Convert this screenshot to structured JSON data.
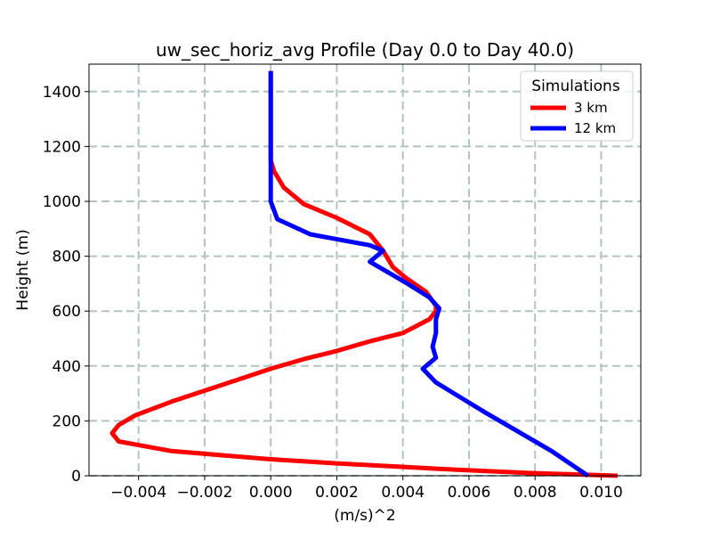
{
  "chart_data": {
    "type": "line",
    "title": "uw_sec_horiz_avg Profile (Day 0.0 to Day 40.0)",
    "xlabel": "(m/s)^2",
    "ylabel": "Height (m)",
    "xlim": [
      -0.0055,
      0.0112
    ],
    "ylim": [
      0,
      1500
    ],
    "x_ticks": [
      -0.004,
      -0.002,
      0.0,
      0.002,
      0.004,
      0.006,
      0.008,
      0.01
    ],
    "x_tick_labels": [
      "−0.004",
      "−0.002",
      "0.000",
      "0.002",
      "0.004",
      "0.006",
      "0.008",
      "0.010"
    ],
    "y_ticks": [
      0,
      200,
      400,
      600,
      800,
      1000,
      1200,
      1400
    ],
    "y_tick_labels": [
      "0",
      "200",
      "400",
      "600",
      "800",
      "1000",
      "1200",
      "1400"
    ],
    "grid": true,
    "legend": {
      "title": "Simulations",
      "placement": "upper right"
    },
    "series": [
      {
        "name": "3 km",
        "color": "#ff0000",
        "points": [
          [
            0.0105,
            0
          ],
          [
            0.0078,
            10
          ],
          [
            0.0051,
            25
          ],
          [
            0.002,
            45
          ],
          [
            0.0,
            60
          ],
          [
            -0.003,
            90
          ],
          [
            -0.0046,
            125
          ],
          [
            -0.0048,
            155
          ],
          [
            -0.0046,
            185
          ],
          [
            -0.0041,
            220
          ],
          [
            -0.003,
            270
          ],
          [
            -0.002,
            310
          ],
          [
            -0.001,
            350
          ],
          [
            0.0,
            390
          ],
          [
            0.001,
            425
          ],
          [
            0.002,
            455
          ],
          [
            0.003,
            490
          ],
          [
            0.004,
            520
          ],
          [
            0.0048,
            570
          ],
          [
            0.005,
            600
          ],
          [
            0.005,
            620
          ],
          [
            0.0047,
            670
          ],
          [
            0.0041,
            720
          ],
          [
            0.0037,
            760
          ],
          [
            0.0034,
            820
          ],
          [
            0.003,
            880
          ],
          [
            0.002,
            940
          ],
          [
            0.001,
            990
          ],
          [
            0.0004,
            1050
          ],
          [
            0.0001,
            1110
          ],
          [
            0.0,
            1150
          ],
          [
            0.0,
            1300
          ],
          [
            0.0,
            1475
          ]
        ]
      },
      {
        "name": "12 km",
        "color": "#0000ff",
        "points": [
          [
            0.0096,
            0
          ],
          [
            0.0085,
            90
          ],
          [
            0.0075,
            160
          ],
          [
            0.0065,
            230
          ],
          [
            0.005,
            340
          ],
          [
            0.0046,
            390
          ],
          [
            0.005,
            430
          ],
          [
            0.0049,
            470
          ],
          [
            0.005,
            520
          ],
          [
            0.005,
            570
          ],
          [
            0.0051,
            610
          ],
          [
            0.0048,
            650
          ],
          [
            0.004,
            710
          ],
          [
            0.003,
            780
          ],
          [
            0.0034,
            820
          ],
          [
            0.003,
            840
          ],
          [
            0.0012,
            880
          ],
          [
            0.0002,
            935
          ],
          [
            0.0,
            1000
          ],
          [
            0.0,
            1150
          ],
          [
            0.0,
            1300
          ],
          [
            0.0,
            1475
          ]
        ]
      }
    ]
  }
}
